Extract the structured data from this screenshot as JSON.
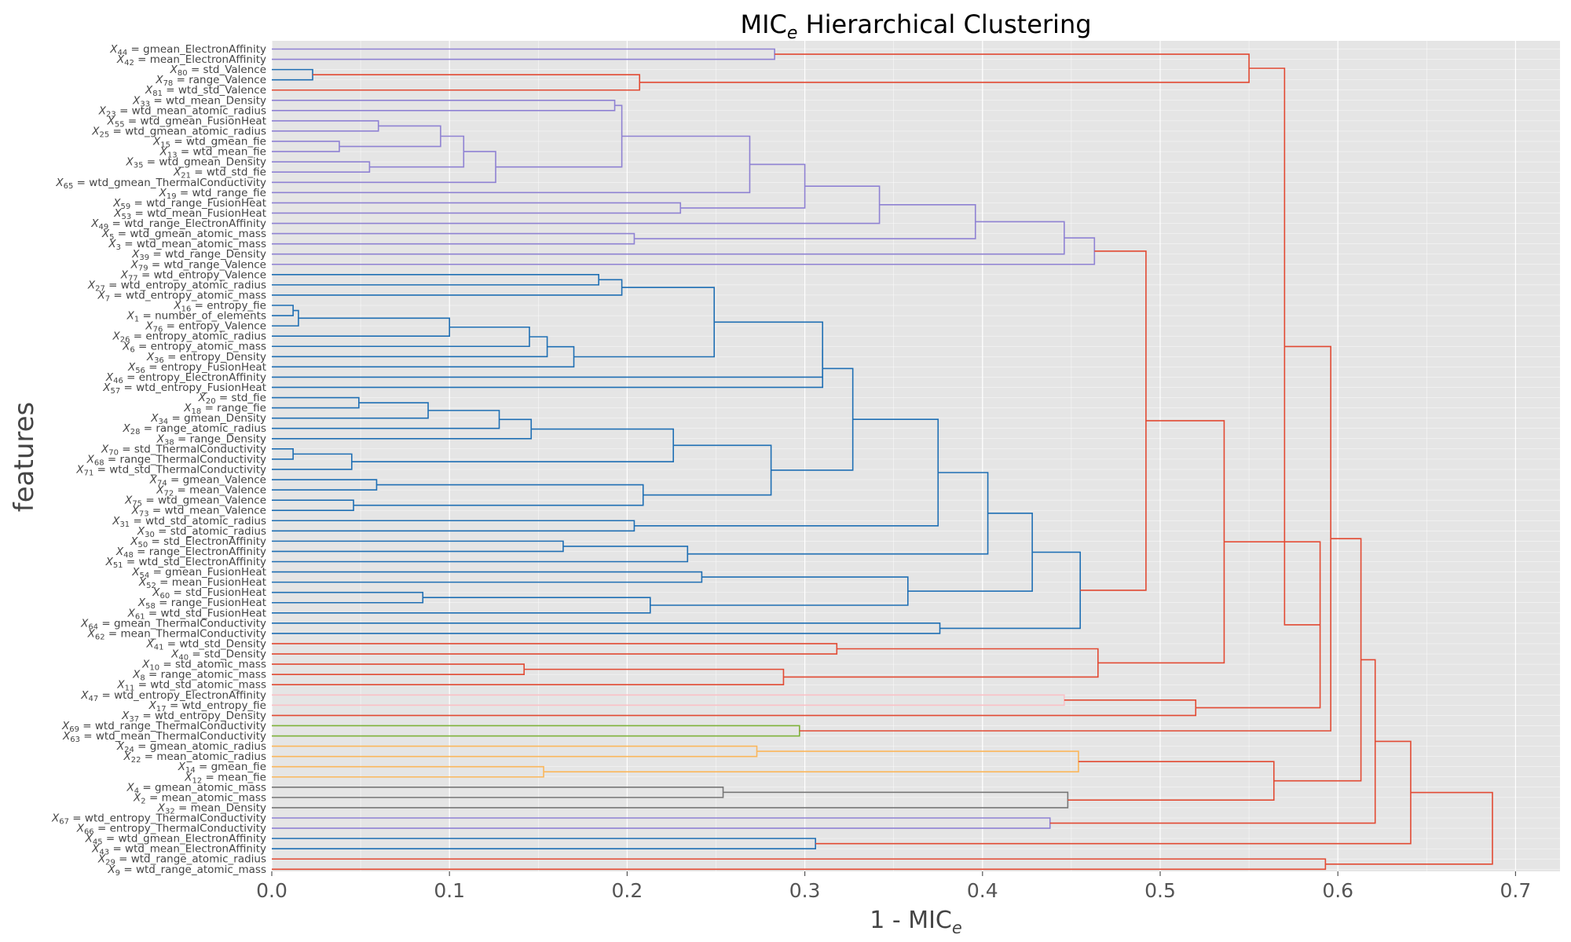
{
  "chart_data": {
    "type": "dendrogram",
    "title": "MIC",
    "title_sub": "e",
    "title_rest": " Hierarchical Clustering",
    "xlabel": "1 - MIC",
    "xlabel_sub": "e",
    "ylabel": "features",
    "xlim": [
      0,
      0.72
    ],
    "xticks": [
      "0.0",
      "0.1",
      "0.2",
      "0.3",
      "0.4",
      "0.5",
      "0.6",
      "0.7"
    ],
    "grid": true,
    "colors": {
      "panel": "#e5e5e5",
      "grid": "#ffffff",
      "C0": "#1f6fb4",
      "C1": "#e24a33",
      "C2": "#8f82d3",
      "C3": "#777777",
      "C4": "#fbb75c",
      "C5": "#7fb23a",
      "C6": "#fac1c6"
    },
    "leaves": [
      {
        "sub": "44",
        "name": "gmean_ElectronAffinity"
      },
      {
        "sub": "42",
        "name": "mean_ElectronAffinity"
      },
      {
        "sub": "80",
        "name": "std_Valence"
      },
      {
        "sub": "78",
        "name": "range_Valence"
      },
      {
        "sub": "81",
        "name": "wtd_std_Valence"
      },
      {
        "sub": "33",
        "name": "wtd_mean_Density"
      },
      {
        "sub": "23",
        "name": "wtd_mean_atomic_radius"
      },
      {
        "sub": "55",
        "name": "wtd_gmean_FusionHeat"
      },
      {
        "sub": "25",
        "name": "wtd_gmean_atomic_radius"
      },
      {
        "sub": "15",
        "name": "wtd_gmean_fie"
      },
      {
        "sub": "13",
        "name": "wtd_mean_fie"
      },
      {
        "sub": "35",
        "name": "wtd_gmean_Density"
      },
      {
        "sub": "21",
        "name": "wtd_std_fie"
      },
      {
        "sub": "65",
        "name": "wtd_gmean_ThermalConductivity"
      },
      {
        "sub": "19",
        "name": "wtd_range_fie"
      },
      {
        "sub": "59",
        "name": "wtd_range_FusionHeat"
      },
      {
        "sub": "53",
        "name": "wtd_mean_FusionHeat"
      },
      {
        "sub": "49",
        "name": "wtd_range_ElectronAffinity"
      },
      {
        "sub": "5",
        "name": "wtd_gmean_atomic_mass"
      },
      {
        "sub": "3",
        "name": "wtd_mean_atomic_mass"
      },
      {
        "sub": "39",
        "name": "wtd_range_Density"
      },
      {
        "sub": "79",
        "name": "wtd_range_Valence"
      },
      {
        "sub": "77",
        "name": "wtd_entropy_Valence"
      },
      {
        "sub": "27",
        "name": "wtd_entropy_atomic_radius"
      },
      {
        "sub": "7",
        "name": "wtd_entropy_atomic_mass"
      },
      {
        "sub": "16",
        "name": "entropy_fie"
      },
      {
        "sub": "1",
        "name": "number_of_elements"
      },
      {
        "sub": "76",
        "name": "entropy_Valence"
      },
      {
        "sub": "26",
        "name": "entropy_atomic_radius"
      },
      {
        "sub": "6",
        "name": "entropy_atomic_mass"
      },
      {
        "sub": "36",
        "name": "entropy_Density"
      },
      {
        "sub": "56",
        "name": "entropy_FusionHeat"
      },
      {
        "sub": "46",
        "name": "entropy_ElectronAffinity"
      },
      {
        "sub": "57",
        "name": "wtd_entropy_FusionHeat"
      },
      {
        "sub": "20",
        "name": "std_fie"
      },
      {
        "sub": "18",
        "name": "range_fie"
      },
      {
        "sub": "34",
        "name": "gmean_Density"
      },
      {
        "sub": "28",
        "name": "range_atomic_radius"
      },
      {
        "sub": "38",
        "name": "range_Density"
      },
      {
        "sub": "70",
        "name": "std_ThermalConductivity"
      },
      {
        "sub": "68",
        "name": "range_ThermalConductivity"
      },
      {
        "sub": "71",
        "name": "wtd_std_ThermalConductivity"
      },
      {
        "sub": "74",
        "name": "gmean_Valence"
      },
      {
        "sub": "72",
        "name": "mean_Valence"
      },
      {
        "sub": "75",
        "name": "wtd_gmean_Valence"
      },
      {
        "sub": "73",
        "name": "wtd_mean_Valence"
      },
      {
        "sub": "31",
        "name": "wtd_std_atomic_radius"
      },
      {
        "sub": "30",
        "name": "std_atomic_radius"
      },
      {
        "sub": "50",
        "name": "std_ElectronAffinity"
      },
      {
        "sub": "48",
        "name": "range_ElectronAffinity"
      },
      {
        "sub": "51",
        "name": "wtd_std_ElectronAffinity"
      },
      {
        "sub": "54",
        "name": "gmean_FusionHeat"
      },
      {
        "sub": "52",
        "name": "mean_FusionHeat"
      },
      {
        "sub": "60",
        "name": "std_FusionHeat"
      },
      {
        "sub": "58",
        "name": "range_FusionHeat"
      },
      {
        "sub": "61",
        "name": "wtd_std_FusionHeat"
      },
      {
        "sub": "64",
        "name": "gmean_ThermalConductivity"
      },
      {
        "sub": "62",
        "name": "mean_ThermalConductivity"
      },
      {
        "sub": "41",
        "name": "wtd_std_Density"
      },
      {
        "sub": "40",
        "name": "std_Density"
      },
      {
        "sub": "10",
        "name": "std_atomic_mass"
      },
      {
        "sub": "8",
        "name": "range_atomic_mass"
      },
      {
        "sub": "11",
        "name": "wtd_std_atomic_mass"
      },
      {
        "sub": "47",
        "name": "wtd_entropy_ElectronAffinity"
      },
      {
        "sub": "17",
        "name": "wtd_entropy_fie"
      },
      {
        "sub": "37",
        "name": "wtd_entropy_Density"
      },
      {
        "sub": "69",
        "name": "wtd_range_ThermalConductivity"
      },
      {
        "sub": "63",
        "name": "wtd_mean_ThermalConductivity"
      },
      {
        "sub": "24",
        "name": "gmean_atomic_radius"
      },
      {
        "sub": "22",
        "name": "mean_atomic_radius"
      },
      {
        "sub": "14",
        "name": "gmean_fie"
      },
      {
        "sub": "12",
        "name": "mean_fie"
      },
      {
        "sub": "4",
        "name": "gmean_atomic_mass"
      },
      {
        "sub": "2",
        "name": "mean_atomic_mass"
      },
      {
        "sub": "32",
        "name": "mean_Density"
      },
      {
        "sub": "67",
        "name": "wtd_entropy_ThermalConductivity"
      },
      {
        "sub": "66",
        "name": "entropy_ThermalConductivity"
      },
      {
        "sub": "45",
        "name": "wtd_gmean_ElectronAffinity"
      },
      {
        "sub": "43",
        "name": "wtd_mean_ElectronAffinity"
      },
      {
        "sub": "29",
        "name": "wtd_range_atomic_radius"
      },
      {
        "sub": "9",
        "name": "wtd_range_atomic_mass"
      }
    ],
    "merges": [
      {
        "id": "a1",
        "l": 0,
        "r": 1,
        "h": 0.283,
        "c": "C2"
      },
      {
        "id": "a2",
        "l": 2,
        "r": 3,
        "h": 0.023,
        "c": "C0"
      },
      {
        "id": "a3",
        "l": "a2",
        "r": 4,
        "h": 0.207,
        "c": "C1"
      },
      {
        "id": "a4",
        "l": "a1",
        "r": "a3",
        "h": 0.55,
        "c": "C1"
      },
      {
        "id": "p1",
        "l": 7,
        "r": 8,
        "h": 0.06,
        "c": "C2"
      },
      {
        "id": "p2",
        "l": 9,
        "r": 10,
        "h": 0.038,
        "c": "C2"
      },
      {
        "id": "p3",
        "l": "p1",
        "r": "p2",
        "h": 0.095,
        "c": "C2"
      },
      {
        "id": "p4",
        "l": 11,
        "r": 12,
        "h": 0.055,
        "c": "C2"
      },
      {
        "id": "p5",
        "l": "p3",
        "r": "p4",
        "h": 0.108,
        "c": "C2"
      },
      {
        "id": "p6",
        "l": "p5",
        "r": 13,
        "h": 0.126,
        "c": "C2"
      },
      {
        "id": "p7",
        "l": 5,
        "r": 6,
        "h": 0.193,
        "c": "C2"
      },
      {
        "id": "p8",
        "l": "p7",
        "r": "p6",
        "h": 0.197,
        "c": "C2"
      },
      {
        "id": "p9",
        "l": "p8",
        "r": 14,
        "h": 0.269,
        "c": "C2"
      },
      {
        "id": "p10",
        "l": 15,
        "r": 16,
        "h": 0.23,
        "c": "C2"
      },
      {
        "id": "p11",
        "l": "p9",
        "r": "p10",
        "h": 0.3,
        "c": "C2"
      },
      {
        "id": "p12",
        "l": "p11",
        "r": 17,
        "h": 0.342,
        "c": "C2"
      },
      {
        "id": "p13",
        "l": 18,
        "r": 19,
        "h": 0.204,
        "c": "C2"
      },
      {
        "id": "p14",
        "l": "p12",
        "r": "p13",
        "h": 0.396,
        "c": "C2"
      },
      {
        "id": "p15",
        "l": "p14",
        "r": 20,
        "h": 0.446,
        "c": "C2"
      },
      {
        "id": "p16",
        "l": "p15",
        "r": 21,
        "h": 0.463,
        "c": "C2"
      },
      {
        "id": "b1",
        "l": 22,
        "r": 23,
        "h": 0.184,
        "c": "C0"
      },
      {
        "id": "b2",
        "l": "b1",
        "r": 24,
        "h": 0.197,
        "c": "C0"
      },
      {
        "id": "b3",
        "l": 25,
        "r": 26,
        "h": 0.012,
        "c": "C0"
      },
      {
        "id": "b4",
        "l": "b3",
        "r": 27,
        "h": 0.015,
        "c": "C0"
      },
      {
        "id": "b5",
        "l": "b4",
        "r": 28,
        "h": 0.1,
        "c": "C0"
      },
      {
        "id": "b6",
        "l": "b5",
        "r": 29,
        "h": 0.145,
        "c": "C0"
      },
      {
        "id": "b7",
        "l": "b6",
        "r": 30,
        "h": 0.155,
        "c": "C0"
      },
      {
        "id": "b8",
        "l": "b7",
        "r": 31,
        "h": 0.17,
        "c": "C0"
      },
      {
        "id": "b9",
        "l": "b2",
        "r": "b8",
        "h": 0.249,
        "c": "C0"
      },
      {
        "id": "b10",
        "l": "b9",
        "r": 32,
        "h": 0.31,
        "c": "C0"
      },
      {
        "id": "b11",
        "l": 34,
        "r": 35,
        "h": 0.049,
        "c": "C0"
      },
      {
        "id": "b12",
        "l": "b11",
        "r": 36,
        "h": 0.088,
        "c": "C0"
      },
      {
        "id": "b13",
        "l": "b12",
        "r": 37,
        "h": 0.128,
        "c": "C0"
      },
      {
        "id": "b14",
        "l": "b13",
        "r": 38,
        "h": 0.146,
        "c": "C0"
      },
      {
        "id": "b15",
        "l": 39,
        "r": 40,
        "h": 0.012,
        "c": "C0"
      },
      {
        "id": "b16",
        "l": "b15",
        "r": 41,
        "h": 0.045,
        "c": "C0"
      },
      {
        "id": "b17",
        "l": "b14",
        "r": "b16",
        "h": 0.226,
        "c": "C0"
      },
      {
        "id": "b18",
        "l": 42,
        "r": 43,
        "h": 0.059,
        "c": "C0"
      },
      {
        "id": "b19",
        "l": 44,
        "r": 45,
        "h": 0.046,
        "c": "C0"
      },
      {
        "id": "b20",
        "l": "b18",
        "r": "b19",
        "h": 0.209,
        "c": "C0"
      },
      {
        "id": "b21",
        "l": "b17",
        "r": "b20",
        "h": 0.281,
        "c": "C0"
      },
      {
        "id": "b22",
        "l": "b10",
        "r": 33,
        "h": 0.31,
        "c": "C0"
      },
      {
        "id": "b23",
        "l": "b22",
        "r": "b21",
        "h": 0.327,
        "c": "C0"
      },
      {
        "id": "b24",
        "l": 46,
        "r": 47,
        "h": 0.204,
        "c": "C0"
      },
      {
        "id": "b25",
        "l": "b23",
        "r": "b24",
        "h": 0.375,
        "c": "C0"
      },
      {
        "id": "b26",
        "l": 48,
        "r": 49,
        "h": 0.164,
        "c": "C0"
      },
      {
        "id": "b27",
        "l": "b26",
        "r": 50,
        "h": 0.234,
        "c": "C0"
      },
      {
        "id": "b28",
        "l": "b25",
        "r": "b27",
        "h": 0.403,
        "c": "C0"
      },
      {
        "id": "b29",
        "l": 51,
        "r": 52,
        "h": 0.242,
        "c": "C0"
      },
      {
        "id": "b30",
        "l": 53,
        "r": 54,
        "h": 0.085,
        "c": "C0"
      },
      {
        "id": "b31",
        "l": "b30",
        "r": 55,
        "h": 0.213,
        "c": "C0"
      },
      {
        "id": "b32",
        "l": "b29",
        "r": "b31",
        "h": 0.358,
        "c": "C0"
      },
      {
        "id": "b33",
        "l": "b28",
        "r": "b32",
        "h": 0.428,
        "c": "C0"
      },
      {
        "id": "b34",
        "l": 56,
        "r": 57,
        "h": 0.376,
        "c": "C0"
      },
      {
        "id": "b35",
        "l": "b33",
        "r": "b34",
        "h": 0.455,
        "c": "C0"
      },
      {
        "id": "m1",
        "l": "p16",
        "r": "b35",
        "h": 0.492,
        "c": "C1"
      },
      {
        "id": "r1",
        "l": 58,
        "r": 59,
        "h": 0.318,
        "c": "C1"
      },
      {
        "id": "r2",
        "l": 60,
        "r": 61,
        "h": 0.142,
        "c": "C1"
      },
      {
        "id": "r3",
        "l": "r2",
        "r": 62,
        "h": 0.288,
        "c": "C1"
      },
      {
        "id": "r4",
        "l": "r1",
        "r": "r3",
        "h": 0.465,
        "c": "C1"
      },
      {
        "id": "m2",
        "l": "m1",
        "r": "r4",
        "h": 0.536,
        "c": "C1"
      },
      {
        "id": "k1",
        "l": 63,
        "r": 64,
        "h": 0.446,
        "c": "C6"
      },
      {
        "id": "k2",
        "l": "k1",
        "r": 65,
        "h": 0.52,
        "c": "C1"
      },
      {
        "id": "m3",
        "l": "m2",
        "r": "k2",
        "h": 0.59,
        "c": "C1"
      },
      {
        "id": "m4",
        "l": "a4",
        "r": "m3",
        "h": 0.57,
        "c": "C1"
      },
      {
        "id": "g1",
        "l": 66,
        "r": 67,
        "h": 0.297,
        "c": "C5"
      },
      {
        "id": "m5",
        "l": "m4",
        "r": "g1",
        "h": 0.596,
        "c": "C1"
      },
      {
        "id": "o1",
        "l": 70,
        "r": 71,
        "h": 0.153,
        "c": "C4"
      },
      {
        "id": "o2",
        "l": 68,
        "r": 69,
        "h": 0.273,
        "c": "C4"
      },
      {
        "id": "o3",
        "l": "o2",
        "r": "o1",
        "h": 0.454,
        "c": "C4"
      },
      {
        "id": "y1",
        "l": 72,
        "r": 73,
        "h": 0.254,
        "c": "C3"
      },
      {
        "id": "y2",
        "l": "y1",
        "r": 74,
        "h": 0.448,
        "c": "C3"
      },
      {
        "id": "m6",
        "l": "o3",
        "r": "y2",
        "h": 0.564,
        "c": "C1"
      },
      {
        "id": "m7",
        "l": "m5",
        "r": "m6",
        "h": 0.613,
        "c": "C1"
      },
      {
        "id": "v1",
        "l": 75,
        "r": 76,
        "h": 0.438,
        "c": "C2"
      },
      {
        "id": "m8",
        "l": "m7",
        "r": "v1",
        "h": 0.621,
        "c": "C1"
      },
      {
        "id": "c1",
        "l": 77,
        "r": 78,
        "h": 0.306,
        "c": "C0"
      },
      {
        "id": "m9",
        "l": "m8",
        "r": "c1",
        "h": 0.641,
        "c": "C1"
      },
      {
        "id": "t1",
        "l": 79,
        "r": 80,
        "h": 0.593,
        "c": "C1"
      },
      {
        "id": "m10",
        "l": "m9",
        "r": "t1",
        "h": 0.687,
        "c": "C1"
      }
    ]
  }
}
